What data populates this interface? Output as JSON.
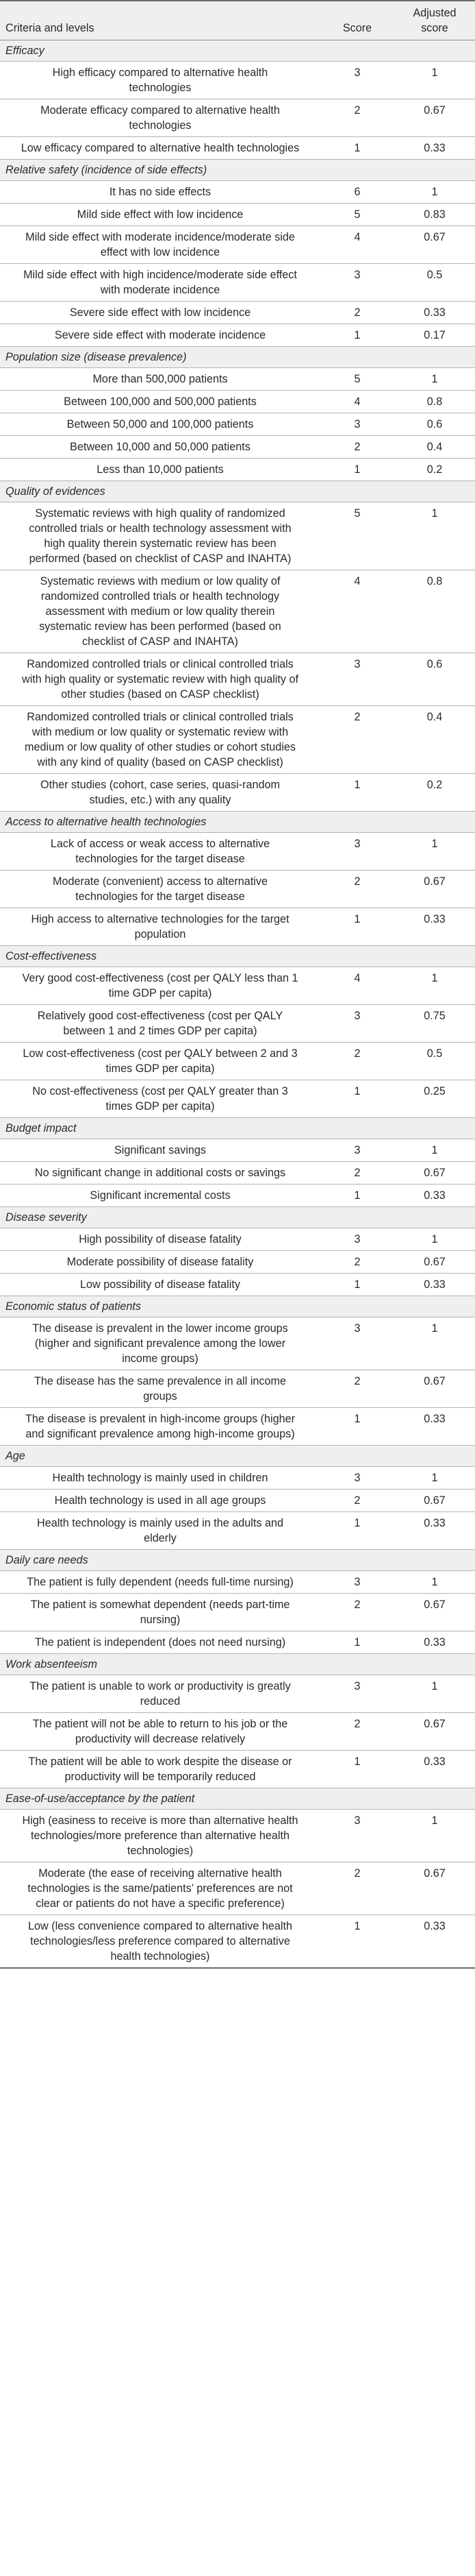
{
  "header": {
    "criteria": "Criteria and levels",
    "score": "Score",
    "adjusted": "Adjusted score"
  },
  "categories": [
    {
      "name": "Efficacy",
      "levels": [
        {
          "label": "High efficacy compared to alternative health technologies",
          "score": "3",
          "adjusted": "1"
        },
        {
          "label": "Moderate efficacy compared to alternative health technologies",
          "score": "2",
          "adjusted": "0.67"
        },
        {
          "label": "Low efficacy compared to alternative health technologies",
          "score": "1",
          "adjusted": "0.33"
        }
      ]
    },
    {
      "name": "Relative safety (incidence of side effects)",
      "levels": [
        {
          "label": "It has no side effects",
          "score": "6",
          "adjusted": "1"
        },
        {
          "label": "Mild side effect with low incidence",
          "score": "5",
          "adjusted": "0.83"
        },
        {
          "label": "Mild side effect with moderate incidence/moderate side effect with low incidence",
          "score": "4",
          "adjusted": "0.67"
        },
        {
          "label": "Mild side effect with high incidence/moderate side effect with moderate incidence",
          "score": "3",
          "adjusted": "0.5"
        },
        {
          "label": "Severe side effect with low incidence",
          "score": "2",
          "adjusted": "0.33"
        },
        {
          "label": "Severe side effect with moderate incidence",
          "score": "1",
          "adjusted": "0.17"
        }
      ]
    },
    {
      "name": "Population size (disease prevalence)",
      "levels": [
        {
          "label": "More than 500,000 patients",
          "score": "5",
          "adjusted": "1"
        },
        {
          "label": "Between 100,000 and 500,000 patients",
          "score": "4",
          "adjusted": "0.8"
        },
        {
          "label": "Between 50,000 and 100,000 patients",
          "score": "3",
          "adjusted": "0.6"
        },
        {
          "label": "Between 10,000 and 50,000 patients",
          "score": "2",
          "adjusted": "0.4"
        },
        {
          "label": "Less than 10,000 patients",
          "score": "1",
          "adjusted": "0.2"
        }
      ]
    },
    {
      "name": "Quality of evidences",
      "levels": [
        {
          "label": "Systematic reviews with high quality of randomized controlled trials or health technology assessment with high quality therein systematic review has been performed (based on checklist of CASP and INAHTA)",
          "score": "5",
          "adjusted": "1"
        },
        {
          "label": "Systematic reviews with medium or low quality of randomized controlled trials or health technology assessment with medium or low quality therein systematic review has been performed (based on checklist of CASP and INAHTA)",
          "score": "4",
          "adjusted": "0.8"
        },
        {
          "label": "Randomized controlled trials or clinical controlled trials with high quality or systematic review with high quality of other studies (based on CASP checklist)",
          "score": "3",
          "adjusted": "0.6"
        },
        {
          "label": "Randomized controlled trials or clinical controlled trials with medium or low quality or systematic review with medium or low quality of other studies or cohort studies with any kind of quality (based on CASP checklist)",
          "score": "2",
          "adjusted": "0.4"
        },
        {
          "label": "Other studies (cohort, case series, quasi-random studies, etc.) with any quality",
          "score": "1",
          "adjusted": "0.2"
        }
      ]
    },
    {
      "name": "Access to alternative health technologies",
      "levels": [
        {
          "label": "Lack of access or weak access to alternative technologies for the target disease",
          "score": "3",
          "adjusted": "1"
        },
        {
          "label": "Moderate (convenient) access to alternative technologies for the target disease",
          "score": "2",
          "adjusted": "0.67"
        },
        {
          "label": "High access to alternative technologies for the target population",
          "score": "1",
          "adjusted": "0.33"
        }
      ]
    },
    {
      "name": "Cost-effectiveness",
      "levels": [
        {
          "label": "Very good cost-effectiveness (cost per QALY less than 1 time GDP per capita)",
          "score": "4",
          "adjusted": "1"
        },
        {
          "label": "Relatively good cost-effectiveness (cost per QALY between 1 and 2 times GDP per capita)",
          "score": "3",
          "adjusted": "0.75"
        },
        {
          "label": "Low cost-effectiveness (cost per QALY between 2 and 3 times GDP per capita)",
          "score": "2",
          "adjusted": "0.5"
        },
        {
          "label": "No cost-effectiveness (cost per QALY greater than 3 times GDP per capita)",
          "score": "1",
          "adjusted": "0.25"
        }
      ]
    },
    {
      "name": "Budget impact",
      "levels": [
        {
          "label": "Significant savings",
          "score": "3",
          "adjusted": "1"
        },
        {
          "label": "No significant change in additional costs or savings",
          "score": "2",
          "adjusted": "0.67"
        },
        {
          "label": "Significant incremental costs",
          "score": "1",
          "adjusted": "0.33"
        }
      ]
    },
    {
      "name": "Disease severity",
      "levels": [
        {
          "label": "High possibility of disease fatality",
          "score": "3",
          "adjusted": "1"
        },
        {
          "label": "Moderate possibility of disease fatality",
          "score": "2",
          "adjusted": "0.67"
        },
        {
          "label": "Low possibility of disease fatality",
          "score": "1",
          "adjusted": "0.33"
        }
      ]
    },
    {
      "name": "Economic status of patients",
      "levels": [
        {
          "label": "The disease is prevalent in the lower income groups (higher and significant prevalence among the lower income groups)",
          "score": "3",
          "adjusted": "1"
        },
        {
          "label": "The disease has the same prevalence in all income groups",
          "score": "2",
          "adjusted": "0.67"
        },
        {
          "label": "The disease is prevalent in high-income groups (higher and significant prevalence among high-income groups)",
          "score": "1",
          "adjusted": "0.33"
        }
      ]
    },
    {
      "name": "Age",
      "levels": [
        {
          "label": "Health technology is mainly used in children",
          "score": "3",
          "adjusted": "1"
        },
        {
          "label": "Health technology is used in all age groups",
          "score": "2",
          "adjusted": "0.67"
        },
        {
          "label": "Health technology is mainly used in the adults and elderly",
          "score": "1",
          "adjusted": "0.33"
        }
      ]
    },
    {
      "name": "Daily care needs",
      "levels": [
        {
          "label": "The patient is fully dependent (needs full-time nursing)",
          "score": "3",
          "adjusted": "1"
        },
        {
          "label": "The patient is somewhat dependent (needs part-time nursing)",
          "score": "2",
          "adjusted": "0.67"
        },
        {
          "label": "The patient is independent (does not need nursing)",
          "score": "1",
          "adjusted": "0.33"
        }
      ]
    },
    {
      "name": "Work absenteeism",
      "levels": [
        {
          "label": "The patient is unable to work or productivity is greatly reduced",
          "score": "3",
          "adjusted": "1"
        },
        {
          "label": "The patient will not be able to return to his job or the productivity will decrease relatively",
          "score": "2",
          "adjusted": "0.67"
        },
        {
          "label": "The patient will be able to work despite the disease or productivity will be temporarily reduced",
          "score": "1",
          "adjusted": "0.33"
        }
      ]
    },
    {
      "name": "Ease-of-use/acceptance by the patient",
      "levels": [
        {
          "label": "High (easiness to receive is more than alternative health technologies/more preference than alternative health technologies)",
          "score": "3",
          "adjusted": "1"
        },
        {
          "label": "Moderate (the ease of receiving alternative health technologies is the same/patients’ preferences are not clear or patients do not have a specific preference)",
          "score": "2",
          "adjusted": "0.67"
        },
        {
          "label": "Low (less convenience compared to alternative health technologies/less preference compared to alternative health technologies)",
          "score": "1",
          "adjusted": "0.33"
        }
      ]
    }
  ]
}
